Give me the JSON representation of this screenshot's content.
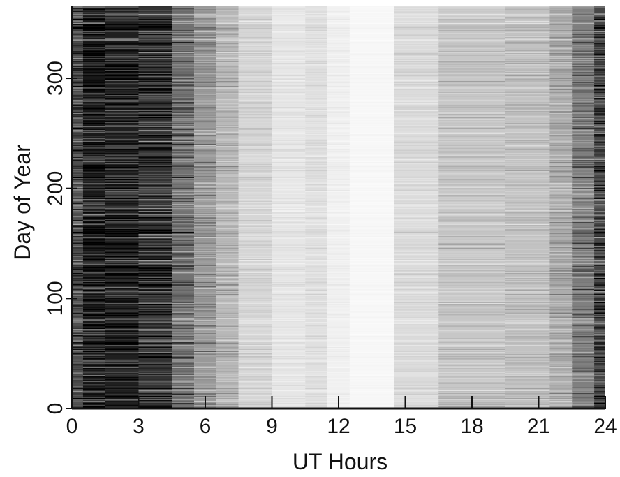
{
  "chart_data": {
    "type": "heatmap",
    "title": "",
    "xlabel": "UT Hours",
    "ylabel": "Day of Year",
    "xlim": [
      0,
      24
    ],
    "ylim": [
      0,
      366
    ],
    "x_ticks": [
      0,
      3,
      6,
      9,
      12,
      15,
      18,
      21,
      24
    ],
    "y_ticks": [
      0,
      100,
      200,
      300
    ],
    "colormap": "grayscale (dark = high, white = low)",
    "hour_bands": [
      {
        "from": 0.0,
        "to": 0.5,
        "level": 0.7
      },
      {
        "from": 0.5,
        "to": 1.5,
        "level": 0.9
      },
      {
        "from": 1.5,
        "to": 3.0,
        "level": 0.88
      },
      {
        "from": 3.0,
        "to": 4.5,
        "level": 0.8
      },
      {
        "from": 4.5,
        "to": 5.5,
        "level": 0.55
      },
      {
        "from": 5.5,
        "to": 6.5,
        "level": 0.4
      },
      {
        "from": 6.5,
        "to": 7.5,
        "level": 0.28
      },
      {
        "from": 7.5,
        "to": 9.0,
        "level": 0.16
      },
      {
        "from": 9.0,
        "to": 10.5,
        "level": 0.1
      },
      {
        "from": 10.5,
        "to": 11.5,
        "level": 0.12
      },
      {
        "from": 11.5,
        "to": 12.5,
        "level": 0.06
      },
      {
        "from": 12.5,
        "to": 14.5,
        "level": 0.03
      },
      {
        "from": 14.5,
        "to": 16.5,
        "level": 0.14
      },
      {
        "from": 16.5,
        "to": 19.5,
        "level": 0.22
      },
      {
        "from": 19.5,
        "to": 21.5,
        "level": 0.24
      },
      {
        "from": 21.5,
        "to": 22.5,
        "level": 0.32
      },
      {
        "from": 22.5,
        "to": 23.5,
        "level": 0.5
      },
      {
        "from": 23.5,
        "to": 24.0,
        "level": 0.72
      }
    ],
    "colors": {
      "axis": "#111111",
      "background": "#ffffff"
    }
  }
}
